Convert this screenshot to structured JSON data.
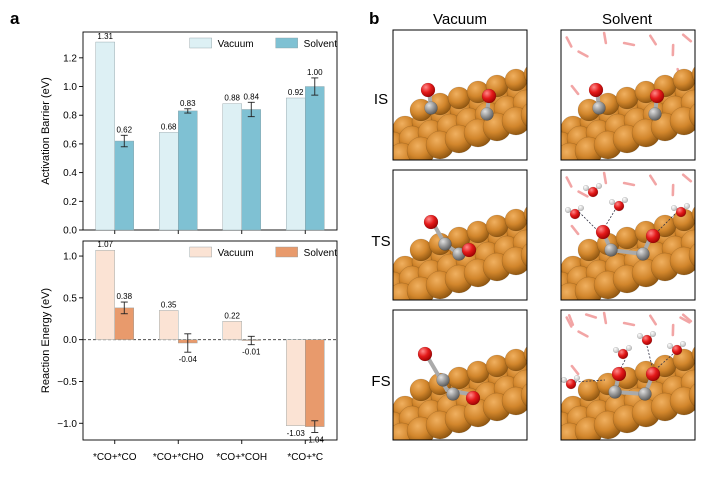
{
  "panel_a_label": "a",
  "panel_b_label": "b",
  "chart_data": [
    {
      "type": "bar",
      "categories": [
        "*CO+*CO",
        "*CO+*CHO",
        "*CO+*COH",
        "*CO+*C"
      ],
      "series": [
        {
          "name": "Vacuum",
          "values": [
            1.31,
            0.68,
            0.88,
            0.92
          ],
          "errors": [
            0,
            0,
            0,
            0
          ],
          "labels": [
            "1.31",
            "0.68",
            "0.88",
            "0.92"
          ],
          "color": "#ddf0f4"
        },
        {
          "name": "Solvent",
          "values": [
            0.62,
            0.83,
            0.84,
            1.0
          ],
          "errors": [
            0.04,
            0.015,
            0.05,
            0.06
          ],
          "labels": [
            "0.62",
            "0.83",
            "0.84",
            "1.00"
          ],
          "color": "#7fc1d3"
        }
      ],
      "title": "",
      "xlabel": "",
      "ylabel": "Activation Barrier (eV)",
      "ylim": [
        0,
        1.38
      ],
      "yticks": [
        0.0,
        0.2,
        0.4,
        0.6,
        0.8,
        1.0,
        1.2
      ],
      "ytick_labels": [
        "0.0",
        "0.2",
        "0.4",
        "0.6",
        "0.8",
        "1.0",
        "1.2"
      ],
      "legend": "top-right"
    },
    {
      "type": "bar",
      "categories": [
        "*CO+*CO",
        "*CO+*CHO",
        "*CO+*COH",
        "*CO+*C"
      ],
      "series": [
        {
          "name": "Vacuum",
          "values": [
            1.07,
            0.35,
            0.22,
            -1.03
          ],
          "errors": [
            0,
            0,
            0,
            0
          ],
          "labels": [
            "1.07",
            "0.35",
            "0.22",
            "-1.03"
          ],
          "color": "#fbe3d4"
        },
        {
          "name": "Solvent",
          "values": [
            0.38,
            -0.04,
            -0.01,
            -1.04
          ],
          "errors": [
            0.07,
            0.11,
            0.05,
            0.07
          ],
          "labels": [
            "0.38",
            "-0.04",
            "-0.01",
            "-1.04"
          ],
          "color": "#e89a6c"
        }
      ],
      "title": "",
      "xlabel": "",
      "ylabel": "Reaction Energy (eV)",
      "ylim": [
        -1.2,
        1.18
      ],
      "yticks": [
        -1.0,
        -0.5,
        0.0,
        0.5,
        1.0
      ],
      "ytick_labels": [
        "−1.0",
        "−0.5",
        "0.0",
        "0.5",
        "1.0"
      ],
      "legend": "top-right",
      "zero_line": "dashed"
    }
  ],
  "structures": {
    "columns": [
      "Vacuum",
      "Solvent"
    ],
    "rows": [
      "IS",
      "TS",
      "FS"
    ]
  },
  "colors": {
    "copper": "#c8781e",
    "oxygen": "#e41a1a",
    "carbon": "#8f8f8f",
    "hydrogen": "#ffffff",
    "water": "#f2a5a5"
  }
}
